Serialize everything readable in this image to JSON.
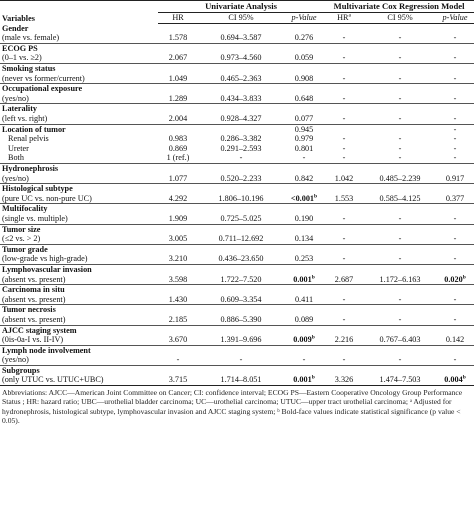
{
  "header": {
    "variables": "Variables",
    "univariate": "Univariate Analysis",
    "multivariate": "Multivariate Cox Regression Model",
    "hr": "HR",
    "ci": "CI 95%",
    "pvalue": "p-Value",
    "hr_a": "HR",
    "hr_a_sup": "a"
  },
  "rows": [
    {
      "name": "Gender",
      "sub": "(male vs. female)",
      "hr1": "1.578",
      "ci1": "0.694–3.587",
      "p1": "0.276",
      "hr2": "-",
      "ci2": "-",
      "p2": "-"
    },
    {
      "name": "ECOG PS",
      "sub": "(0–1 vs. ≥2)",
      "hr1": "2.067",
      "ci1": "0.973–4.560",
      "p1": "0.059",
      "hr2": "-",
      "ci2": "-",
      "p2": "-"
    },
    {
      "name": "Smoking status",
      "sub": "(never vs former/current)",
      "hr1": "1.049",
      "ci1": "0.465–2.363",
      "p1": "0.908",
      "hr2": "-",
      "ci2": "-",
      "p2": "-"
    },
    {
      "name": "Occupational exposure",
      "sub": "(yes/no)",
      "hr1": "1.289",
      "ci1": "0.434–3.833",
      "p1": "0.648",
      "hr2": "-",
      "ci2": "-",
      "p2": "-"
    },
    {
      "name": "Laterality",
      "sub": "(left vs. right)",
      "hr1": "2.004",
      "ci1": "0.928–4.327",
      "p1": "0.077",
      "hr2": "-",
      "ci2": "-",
      "p2": "-"
    }
  ],
  "location": {
    "name": "Location of tumor",
    "p1": "0.945",
    "p2": "-",
    "items": [
      {
        "label": "Renal pelvis",
        "hr1": "0.983",
        "ci1": "0.286–3.382",
        "p1": "0.979",
        "hr2": "-",
        "ci2": "-",
        "p2": "-"
      },
      {
        "label": "Ureter",
        "hr1": "0.869",
        "ci1": "0.291–2.593",
        "p1": "0.801",
        "hr2": "-",
        "ci2": "-",
        "p2": "-"
      },
      {
        "label": "Both",
        "hr1": "1 (ref.)",
        "ci1": "-",
        "p1": "-",
        "hr2": "-",
        "ci2": "-",
        "p2": "-"
      }
    ]
  },
  "rows2": [
    {
      "name": "Hydronephrosis",
      "sub": "(yes/no)",
      "hr1": "1.077",
      "ci1": "0.520–2.233",
      "p1": "0.842",
      "p1_bold": false,
      "p1_sup": "",
      "hr2": "1.042",
      "ci2": "0.485–2.239",
      "p2": "0.917",
      "p2_bold": false,
      "p2_sup": ""
    },
    {
      "name": "Histological subtype",
      "sub": "(pure UC vs. non-pure UC)",
      "hr1": "4.292",
      "ci1": "1.806–10.196",
      "p1": "<0.001",
      "p1_bold": true,
      "p1_sup": "b",
      "hr2": "1.553",
      "ci2": "0.585–4.125",
      "p2": "0.377",
      "p2_bold": false,
      "p2_sup": ""
    },
    {
      "name": "Multifocality",
      "sub": "(single vs. multiple)",
      "hr1": "1.909",
      "ci1": "0.725–5.025",
      "p1": "0.190",
      "p1_bold": false,
      "p1_sup": "",
      "hr2": "-",
      "ci2": "-",
      "p2": "-",
      "p2_bold": false,
      "p2_sup": ""
    },
    {
      "name": "Tumor size",
      "sub": "(≤2 vs. > 2)",
      "hr1": "3.005",
      "ci1": "0.711–12.692",
      "p1": "0.134",
      "p1_bold": false,
      "p1_sup": "",
      "hr2": "-",
      "ci2": "-",
      "p2": "-",
      "p2_bold": false,
      "p2_sup": ""
    },
    {
      "name": "Tumor grade",
      "sub": "(low-grade vs high-grade)",
      "hr1": "3.210",
      "ci1": "0.436–23.650",
      "p1": "0.253",
      "p1_bold": false,
      "p1_sup": "",
      "hr2": "-",
      "ci2": "-",
      "p2": "-",
      "p2_bold": false,
      "p2_sup": ""
    },
    {
      "name": "Lymphovascular invasion",
      "sub": "(absent vs. present)",
      "hr1": "3.598",
      "ci1": "1.722–7.520",
      "p1": "0.001",
      "p1_bold": true,
      "p1_sup": "b",
      "hr2": "2.687",
      "ci2": "1.172–6.163",
      "p2": "0.020",
      "p2_bold": true,
      "p2_sup": "b"
    },
    {
      "name": "Carcinoma in situ",
      "sub": "(absent vs. present)",
      "hr1": "1.430",
      "ci1": "0.609–3.354",
      "p1": "0.411",
      "p1_bold": false,
      "p1_sup": "",
      "hr2": "-",
      "ci2": "-",
      "p2": "-",
      "p2_bold": false,
      "p2_sup": ""
    },
    {
      "name": "Tumor necrosis",
      "sub": "(absent vs. present)",
      "hr1": "2.185",
      "ci1": "0.886–5.390",
      "p1": "0.089",
      "p1_bold": false,
      "p1_sup": "",
      "hr2": "-",
      "ci2": "-",
      "p2": "-",
      "p2_bold": false,
      "p2_sup": ""
    },
    {
      "name": "AJCC staging system",
      "sub": "(0is-0a-I vs. II-IV)",
      "hr1": "3.670",
      "ci1": "1.391–9.696",
      "p1": "0.009",
      "p1_bold": true,
      "p1_sup": "b",
      "hr2": "2.216",
      "ci2": "0.767–6.403",
      "p2": "0.142",
      "p2_bold": false,
      "p2_sup": ""
    },
    {
      "name": "Lymph node involvement",
      "sub": "(yes/no)",
      "hr1": "-",
      "ci1": "-",
      "p1": "-",
      "p1_bold": false,
      "p1_sup": "",
      "hr2": "-",
      "ci2": "-",
      "p2": "-",
      "p2_bold": false,
      "p2_sup": ""
    },
    {
      "name": "Subgroups",
      "sub": "(only UTUC vs. UTUC+UBC)",
      "hr1": "3.715",
      "ci1": "1.714–8.051",
      "p1": "0.001",
      "p1_bold": true,
      "p1_sup": "b",
      "hr2": "3.326",
      "ci2": "1.474–7.503",
      "p2": "0.004",
      "p2_bold": true,
      "p2_sup": "b"
    }
  ],
  "footnote": "Abbreviations: AJCC—American Joint Committee on Cancer; CI: confidence interval; ECOG PS—Eastern Cooperative Oncology Group Performance Status ; HR: hazard ratio; UBC—urothelial bladder carcinoma; UC—urothelial carcinoma; UTUC—upper tract urothelial carcinoma; ᵃ Adjusted for hydronephrosis, histological subtype, lymphovascular invasion and AJCC staging system; ᵇ Bold-face values indicate statistical significance (p value < 0.05)."
}
